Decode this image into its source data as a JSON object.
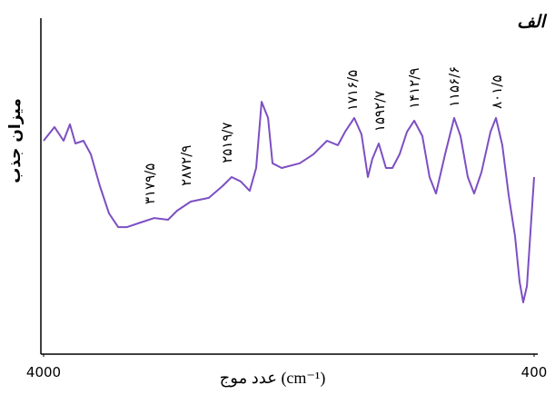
{
  "chart_data": {
    "type": "line",
    "title": "الف",
    "x_label": "عدد موج (cm⁻¹)",
    "y_label": "میزان جذب",
    "x": [
      4000,
      3920,
      3853,
      3807,
      3767,
      3707,
      3653,
      3587,
      3520,
      3453,
      3387,
      3287,
      3187,
      3087,
      3020,
      2920,
      2787,
      2687,
      2620,
      2553,
      2487,
      2440,
      2400,
      2353,
      2320,
      2253,
      2120,
      2020,
      1920,
      1840,
      1787,
      1720,
      1667,
      1620,
      1587,
      1540,
      1487,
      1440,
      1387,
      1333,
      1280,
      1220,
      1167,
      1120,
      1053,
      987,
      940,
      887,
      840,
      787,
      720,
      680,
      633,
      587,
      540,
      507,
      480,
      453,
      420,
      400
    ],
    "values": [
      63.5,
      67.6,
      63.5,
      68.4,
      62.7,
      63.5,
      59.5,
      50.0,
      41.9,
      37.8,
      37.8,
      39.2,
      40.5,
      40.0,
      42.7,
      45.4,
      46.5,
      50.0,
      52.7,
      51.4,
      48.6,
      55.4,
      75.1,
      70.3,
      56.8,
      55.4,
      56.8,
      59.5,
      63.5,
      62.2,
      66.2,
      70.3,
      65.4,
      52.7,
      58.1,
      62.7,
      55.4,
      55.4,
      59.5,
      66.2,
      69.5,
      64.9,
      52.7,
      47.8,
      59.5,
      70.3,
      64.9,
      52.7,
      47.8,
      54.1,
      66.2,
      70.3,
      62.2,
      47.3,
      35.1,
      21.6,
      15.4,
      20.3,
      40.5,
      52.7
    ],
    "color": "#7d4fc2",
    "xlim": [
      4000,
      400
    ],
    "xticks": [
      4000,
      400
    ],
    "ylim": [
      0,
      100
    ],
    "annotations": [
      {
        "text": "۳۱۷۹/۵",
        "x": 3220,
        "y": 44.6
      },
      {
        "text": "۲۸۷۲/۹",
        "x": 2953,
        "y": 50.0
      },
      {
        "text": "۲۵۱۹/۷",
        "x": 2653,
        "y": 56.8
      },
      {
        "text": "۱۷۱۶/۵",
        "x": 1733,
        "y": 72.4
      },
      {
        "text": "۱۵۹۲/۷",
        "x": 1533,
        "y": 66.2
      },
      {
        "text": "۱۴۱۲/۹",
        "x": 1280,
        "y": 73.0
      },
      {
        "text": "۱۱۵۶/۶",
        "x": 987,
        "y": 73.5
      },
      {
        "text": "۸۰۱/۵",
        "x": 673,
        "y": 73.0
      }
    ]
  }
}
